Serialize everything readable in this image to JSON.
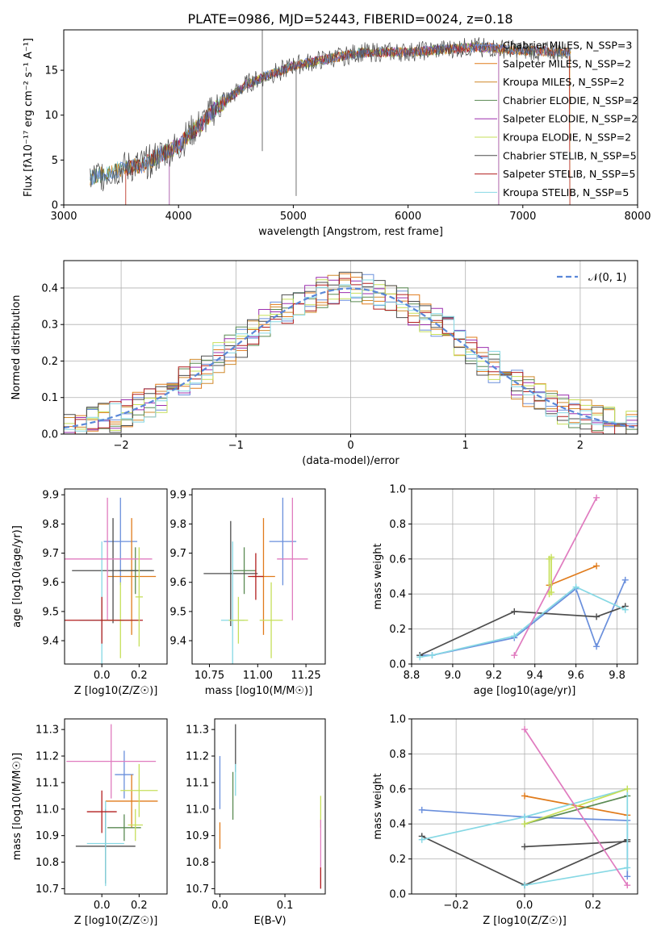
{
  "figure": {
    "title": "PLATE=0986, MJD=52443, FIBERID=0024, z=0.18"
  },
  "colors": {
    "chabrier_miles": "#6a8fdc",
    "salpeter_miles": "#e07b1b",
    "kroupa_miles": "#d08a2c",
    "chabrier_elodie": "#5a8a52",
    "salpeter_elodie": "#9b2fae",
    "kroupa_elodie": "#c6df5a",
    "chabrier_stelib": "#4d4d4d",
    "salpeter_stelib": "#b21e1e",
    "kroupa_stelib": "#86d8e4",
    "ptsA_1": "#6a8fdc",
    "ptsA_2": "#e07b1b",
    "ptsA_3": "#5a8a52",
    "ptsA_4": "#4d4d4d",
    "ptsA_5": "#86d8e4",
    "ptsA_6": "#c6df5a",
    "ptsA_7": "#e07bbf",
    "normal": "#5a87d8"
  },
  "chart_data": [
    {
      "id": "spectrum",
      "type": "line",
      "xlabel": "wavelength [Angstrom, rest frame]",
      "ylabel": "Flux [fλ10⁻¹⁷ erg cm⁻² s⁻¹ A⁻¹]",
      "xlim": [
        3000,
        8000
      ],
      "ylim": [
        0,
        19.5
      ],
      "xticks": [
        "3000",
        "4000",
        "5000",
        "6000",
        "7000",
        "8000"
      ],
      "yticks": [
        "0",
        "5",
        "10",
        "15"
      ],
      "legend_placement": "top-right",
      "legend": [
        "Chabrier MILES, N_SSP=3",
        "Salpeter MILES, N_SSP=2",
        "Kroupa MILES, N_SSP=2",
        "Chabrier ELODIE, N_SSP=2",
        "Salpeter ELODIE, N_SSP=2",
        "Kroupa ELODIE, N_SSP=2",
        "Chabrier STELIB, N_SSP=5",
        "Salpeter STELIB, N_SSP=5",
        "Kroupa STELIB, N_SSP=5"
      ],
      "data_continuum": {
        "x": [
          3230,
          3500,
          3700,
          3900,
          4000,
          4100,
          4200,
          4300,
          4400,
          4500,
          4600,
          4800,
          5000,
          5200,
          5400,
          5600,
          5800,
          6000,
          6200,
          6400,
          6600,
          6800,
          7000,
          7200,
          7420
        ],
        "y": [
          3,
          4,
          4.5,
          6,
          6.5,
          8,
          9,
          10.5,
          11.5,
          12.5,
          13.5,
          14.5,
          15.5,
          16,
          16.5,
          17,
          17,
          17,
          17.2,
          17.4,
          17.6,
          17.4,
          17.2,
          17.1,
          17
        ]
      }
    },
    {
      "id": "residuals",
      "type": "line",
      "xlabel": "(data-model)/error",
      "ylabel": "Normed distribution",
      "xlim": [
        -2.5,
        2.5
      ],
      "ylim": [
        0,
        0.475
      ],
      "xticks": [
        "−2",
        "−1",
        "0",
        "1",
        "2"
      ],
      "yticks": [
        "0.0",
        "0.1",
        "0.2",
        "0.3",
        "0.4"
      ],
      "grid": true,
      "legend": [
        "𝒩(0, 1)"
      ],
      "legend_placement": "top-right",
      "normal_mean": 0,
      "normal_sigma": 1
    },
    {
      "id": "age_vs_Z",
      "type": "scatter",
      "xlabel": "Z [log10(Z/Z☉)]",
      "ylabel": "age [log10(age/yr)]",
      "xlim": [
        -0.2,
        0.35
      ],
      "ylim": [
        9.32,
        9.92
      ],
      "xticks": [
        "0.0",
        "0.2"
      ],
      "yticks": [
        "9.4",
        "9.5",
        "9.6",
        "9.7",
        "9.8",
        "9.9"
      ],
      "points": [
        {
          "x": 0.1,
          "y": 9.74,
          "xerr": 0.09,
          "yerr": 0.15
        },
        {
          "x": 0.16,
          "y": 9.62,
          "xerr": 0.13,
          "yerr": 0.2
        },
        {
          "x": 0.18,
          "y": 9.64,
          "xerr": 0.09,
          "yerr": 0.08
        },
        {
          "x": 0.06,
          "y": 9.64,
          "xerr": 0.22,
          "yerr": 0.18
        },
        {
          "x": 0.0,
          "y": 9.47,
          "xerr": 0.12,
          "yerr": 0.27
        },
        {
          "x": 0.1,
          "y": 9.47,
          "xerr": 0.1,
          "yerr": 0.13
        },
        {
          "x": 0.03,
          "y": 9.68,
          "xerr": 0.24,
          "yerr": 0.21
        },
        {
          "x": 0.0,
          "y": 9.47,
          "xerr": 0.22,
          "yerr": 0.08
        },
        {
          "x": 0.2,
          "y": 9.55,
          "xerr": 0.02,
          "yerr": 0.17
        }
      ]
    },
    {
      "id": "age_vs_mass",
      "type": "scatter",
      "xlabel": "mass [log10(M/M☉)]",
      "ylabel": "",
      "xlim": [
        10.66,
        11.35
      ],
      "ylim": [
        9.32,
        9.92
      ],
      "xticks": [
        "10.75",
        "11.00",
        "11.25"
      ],
      "yticks": [
        "9.4",
        "9.5",
        "9.6",
        "9.7",
        "9.8",
        "9.9"
      ],
      "points": [
        {
          "x": 11.13,
          "y": 9.74,
          "xerr": 0.07,
          "yerr": 0.15
        },
        {
          "x": 11.03,
          "y": 9.62,
          "xerr": 0.06,
          "yerr": 0.2
        },
        {
          "x": 10.93,
          "y": 9.64,
          "xerr": 0.06,
          "yerr": 0.08
        },
        {
          "x": 10.86,
          "y": 9.63,
          "xerr": 0.14,
          "yerr": 0.18
        },
        {
          "x": 10.87,
          "y": 9.47,
          "xerr": 0.06,
          "yerr": 0.27
        },
        {
          "x": 11.07,
          "y": 9.47,
          "xerr": 0.06,
          "yerr": 0.13
        },
        {
          "x": 11.18,
          "y": 9.68,
          "xerr": 0.08,
          "yerr": 0.21
        },
        {
          "x": 10.99,
          "y": 9.62,
          "xerr": 0.04,
          "yerr": 0.08
        },
        {
          "x": 10.9,
          "y": 9.47,
          "xerr": 0.05,
          "yerr": 0.08
        }
      ]
    },
    {
      "id": "weight_vs_age",
      "type": "line",
      "xlabel": "age [log10(age/yr)]",
      "ylabel": "mass weight",
      "xlim": [
        8.8,
        9.9
      ],
      "ylim": [
        0,
        1
      ],
      "xticks": [
        "8.8",
        "9.0",
        "9.2",
        "9.4",
        "9.6",
        "9.8"
      ],
      "yticks": [
        "0.0",
        "0.2",
        "0.4",
        "0.6",
        "0.8",
        "1.0"
      ],
      "grid": true,
      "series": [
        {
          "x": [
            8.84,
            8.9,
            9.3,
            9.6,
            9.7,
            9.84
          ],
          "y": [
            0.05,
            0.05,
            0.15,
            0.43,
            0.1,
            0.48
          ]
        },
        {
          "x": [
            9.47,
            9.7
          ],
          "y": [
            0.45,
            0.56
          ]
        },
        {
          "x": [
            9.47,
            9.47
          ],
          "y": [
            0.4,
            0.6
          ]
        },
        {
          "x": [
            8.84,
            9.3,
            9.7,
            9.84
          ],
          "y": [
            0.05,
            0.3,
            0.27,
            0.33
          ]
        },
        {
          "x": [
            8.84,
            8.9,
            9.3,
            9.6,
            9.84
          ],
          "y": [
            0.04,
            0.05,
            0.16,
            0.44,
            0.31
          ]
        },
        {
          "x": [
            9.3,
            9.7
          ],
          "y": [
            0.05,
            0.95
          ]
        },
        {
          "x": [
            9.48,
            9.48
          ],
          "y": [
            0.41,
            0.61
          ]
        }
      ]
    },
    {
      "id": "mass_vs_Z",
      "type": "scatter",
      "xlabel": "Z [log10(Z/Z☉)]",
      "ylabel": "mass [log10(M/M☉)]",
      "xlim": [
        -0.2,
        0.35
      ],
      "ylim": [
        10.68,
        11.34
      ],
      "xticks": [
        "0.0",
        "0.2"
      ],
      "yticks": [
        "10.7",
        "10.8",
        "10.9",
        "11.0",
        "11.1",
        "11.2",
        "11.3"
      ],
      "points": [
        {
          "x": 0.12,
          "y": 11.13,
          "xerr": 0.05,
          "yerr": 0.09
        },
        {
          "x": 0.16,
          "y": 11.03,
          "xerr": 0.14,
          "yerr": 0.1
        },
        {
          "x": 0.12,
          "y": 10.93,
          "xerr": 0.09,
          "yerr": 0.05
        },
        {
          "x": 0.02,
          "y": 10.86,
          "xerr": 0.16,
          "yerr": 0.14
        },
        {
          "x": 0.02,
          "y": 10.87,
          "xerr": 0.1,
          "yerr": 0.16
        },
        {
          "x": 0.2,
          "y": 11.07,
          "xerr": 0.1,
          "yerr": 0.1
        },
        {
          "x": 0.05,
          "y": 11.18,
          "xerr": 0.24,
          "yerr": 0.14
        },
        {
          "x": 0.0,
          "y": 10.99,
          "xerr": 0.08,
          "yerr": 0.08
        },
        {
          "x": 0.18,
          "y": 10.94,
          "xerr": 0.04,
          "yerr": 0.06
        }
      ]
    },
    {
      "id": "mass_vs_ebv",
      "type": "scatter",
      "xlabel": "E(B-V)",
      "ylabel": "",
      "xlim": [
        -0.008,
        0.162
      ],
      "ylim": [
        10.68,
        11.34
      ],
      "xticks": [
        "0.0",
        "0.1"
      ],
      "yticks": [
        "10.7",
        "10.8",
        "10.9",
        "11.0",
        "11.1",
        "11.2",
        "11.3"
      ],
      "points": [
        {
          "x": 0.0,
          "y": 11.1,
          "xerr": 0,
          "yerr": 0.1
        },
        {
          "x": 0.0,
          "y": 10.9,
          "xerr": 0,
          "yerr": 0.05
        },
        {
          "x": 0.02,
          "y": 11.05,
          "xerr": 0,
          "yerr": 0.09
        },
        {
          "x": 0.024,
          "y": 11.23,
          "xerr": 0,
          "yerr": 0.09
        },
        {
          "x": 0.024,
          "y": 11.11,
          "xerr": 0,
          "yerr": 0.06
        },
        {
          "x": 0.155,
          "y": 10.99,
          "xerr": 0,
          "yerr": 0.06
        },
        {
          "x": 0.155,
          "y": 10.83,
          "xerr": 0,
          "yerr": 0.13
        },
        {
          "x": 0.155,
          "y": 10.74,
          "xerr": 0,
          "yerr": 0.04
        }
      ]
    },
    {
      "id": "weight_vs_Z",
      "type": "line",
      "xlabel": "Z [log10(Z/Z☉)]",
      "ylabel": "mass weight",
      "xlim": [
        -0.33,
        0.33
      ],
      "ylim": [
        0,
        1
      ],
      "xticks": [
        "−0.2",
        "0.0",
        "0.2"
      ],
      "yticks": [
        "0.0",
        "0.2",
        "0.4",
        "0.6",
        "0.8",
        "1.0"
      ],
      "grid": true,
      "series": [
        {
          "x": [
            -0.3,
            0.0,
            0.3,
            0.3
          ],
          "y": [
            0.48,
            0.44,
            0.42,
            0.1
          ]
        },
        {
          "x": [
            0.0,
            0.3
          ],
          "y": [
            0.56,
            0.45
          ]
        },
        {
          "x": [
            0.0,
            0.3
          ],
          "y": [
            0.4,
            0.56
          ]
        },
        {
          "x": [
            -0.3,
            0.0,
            0.3
          ],
          "y": [
            0.33,
            0.05,
            0.31
          ]
        },
        {
          "x": [
            0.0,
            0.3
          ],
          "y": [
            0.27,
            0.3
          ]
        },
        {
          "x": [
            -0.3,
            0.0,
            0.3,
            0.3,
            0.0
          ],
          "y": [
            0.31,
            0.44,
            0.6,
            0.15,
            0.05
          ]
        },
        {
          "x": [
            0.0,
            0.3
          ],
          "y": [
            0.4,
            0.6
          ]
        },
        {
          "x": [
            0.0,
            0.3
          ],
          "y": [
            0.94,
            0.05
          ]
        }
      ]
    }
  ]
}
